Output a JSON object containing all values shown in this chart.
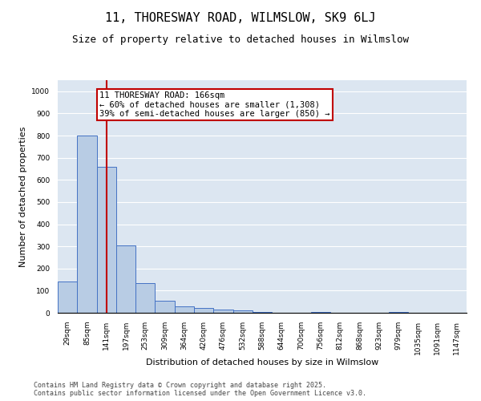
{
  "title": "11, THORESWAY ROAD, WILMSLOW, SK9 6LJ",
  "subtitle": "Size of property relative to detached houses in Wilmslow",
  "xlabel": "Distribution of detached houses by size in Wilmslow",
  "ylabel": "Number of detached properties",
  "categories": [
    "29sqm",
    "85sqm",
    "141sqm",
    "197sqm",
    "253sqm",
    "309sqm",
    "364sqm",
    "420sqm",
    "476sqm",
    "532sqm",
    "588sqm",
    "644sqm",
    "700sqm",
    "756sqm",
    "812sqm",
    "868sqm",
    "923sqm",
    "979sqm",
    "1035sqm",
    "1091sqm",
    "1147sqm"
  ],
  "values": [
    140,
    800,
    660,
    305,
    135,
    55,
    30,
    20,
    15,
    10,
    2,
    0,
    0,
    5,
    0,
    0,
    0,
    5,
    0,
    0,
    0
  ],
  "bar_color": "#b8cce4",
  "bar_edge_color": "#4472c4",
  "vline_x": 2,
  "vline_color": "#c00000",
  "annotation_text": "11 THORESWAY ROAD: 166sqm\n← 60% of detached houses are smaller (1,308)\n39% of semi-detached houses are larger (850) →",
  "annotation_box_color": "#ffffff",
  "annotation_box_edge_color": "#c00000",
  "ylim": [
    0,
    1050
  ],
  "yticks": [
    0,
    100,
    200,
    300,
    400,
    500,
    600,
    700,
    800,
    900,
    1000
  ],
  "plot_bg_color": "#dce6f1",
  "footer": "Contains HM Land Registry data © Crown copyright and database right 2025.\nContains public sector information licensed under the Open Government Licence v3.0.",
  "title_fontsize": 11,
  "subtitle_fontsize": 9,
  "xlabel_fontsize": 8,
  "ylabel_fontsize": 8,
  "tick_fontsize": 6.5,
  "annotation_fontsize": 7.5,
  "footer_fontsize": 6
}
